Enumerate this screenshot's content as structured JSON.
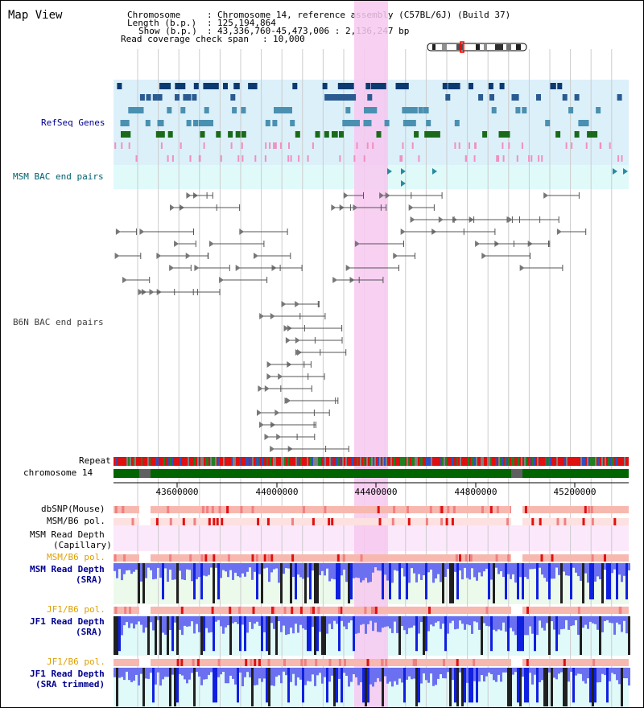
{
  "title": "Map View",
  "header": {
    "chromosome_label": "Chromosome",
    "chromosome_value": "Chromosome 14, reference assembly (C57BL/6J) (Build 37)",
    "length_label": "Length (b.p.)",
    "length_value": "125,194,864",
    "show_label": "Show (b.p.)",
    "show_value": "43,336,760-45,473,006 : 2,136,247 bp",
    "coverage_label": "Read coverage check span",
    "coverage_value": "10,000"
  },
  "tracks": {
    "refseq": "RefSeq Genes",
    "msm_bac": "MSM BAC end pairs",
    "b6n_bac": "B6N BAC end pairs",
    "repeat": "Repeat",
    "chromosome": "chromosome 14",
    "dbsnp": "dbSNP(Mouse)",
    "msm_b6_pol_1": "MSM/B6 pol.",
    "msm_capillary_1": "MSM Read Depth",
    "msm_capillary_2": "(Capillary)",
    "msm_b6_pol_2": "MSM/B6 pol.",
    "msm_sra_1": "MSM Read Depth",
    "msm_sra_2": "(SRA)",
    "jf1_b6_pol_1": "JF1/B6 pol.",
    "jf1_sra_1": "JF1 Read Depth",
    "jf1_sra_2": "(SRA)",
    "jf1_b6_pol_2": "JF1/B6 pol.",
    "jf1_trim_1": "JF1 Read Depth",
    "jf1_trim_2": "(SRA trimmed)"
  },
  "axis": {
    "ticks": [
      "43600000",
      "44000000",
      "44400000",
      "44800000",
      "45200000"
    ]
  },
  "colors": {
    "highlight": "#f7c8f0",
    "refseq_bg": "#dcf0fa",
    "msm_bac_bg": "#e0fafa",
    "capillary_bg": "#fbe8fb",
    "sra_bg": "#ecfaec",
    "jf1_bg": "#e0fafa",
    "chromosome": "#006400",
    "pol_label": "#e0a000",
    "depth_label": "#000090"
  }
}
